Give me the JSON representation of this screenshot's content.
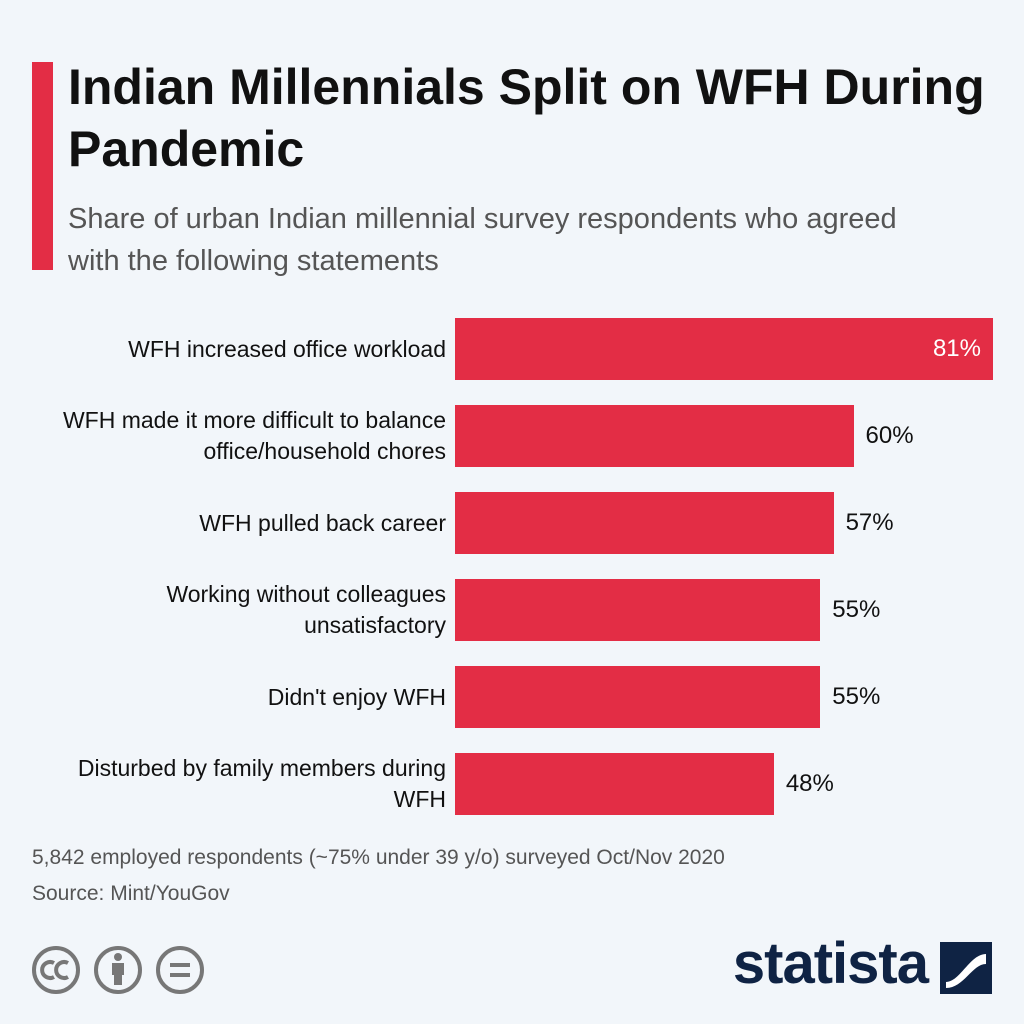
{
  "chart_data": {
    "type": "bar",
    "orientation": "horizontal",
    "title": "Indian Millennials Split on WFH During Pandemic",
    "subtitle": "Share of urban Indian millennial survey respondents who agreed with the following statements",
    "categories": [
      "WFH increased office workload",
      "WFH made it more difficult to balance office/household chores",
      "WFH pulled back career",
      "Working without colleagues unsatisfactory",
      "Didn't enjoy WFH",
      "Disturbed by family members during WFH"
    ],
    "values": [
      81,
      60,
      57,
      55,
      55,
      48
    ],
    "value_labels": [
      "81%",
      "60%",
      "57%",
      "55%",
      "55%",
      "48%"
    ],
    "color": "#e32d45",
    "note": "5,842 employed respondents (~75% under 39 y/o) surveyed Oct/Nov 2020",
    "source": "Source: Mint/YouGov",
    "logo": "statista"
  }
}
